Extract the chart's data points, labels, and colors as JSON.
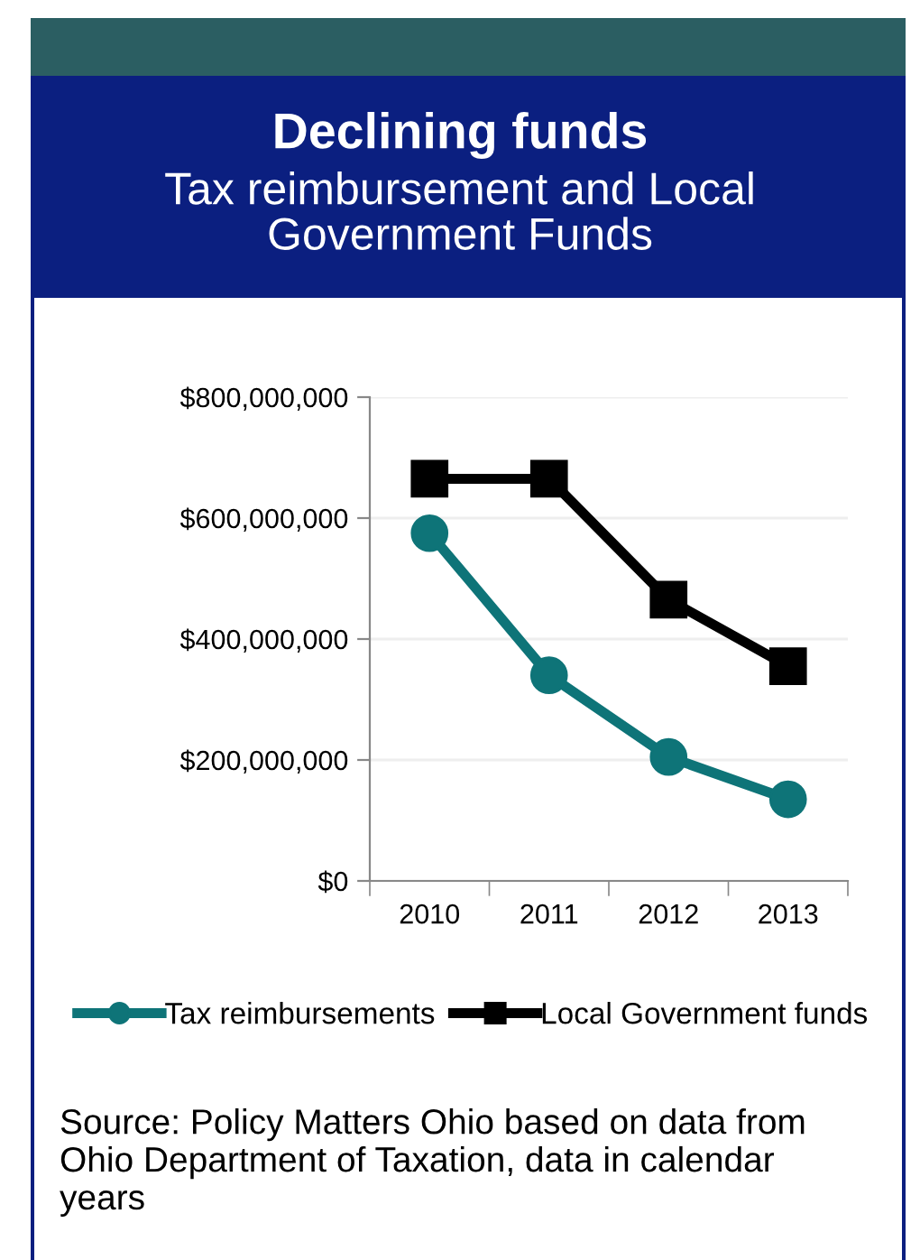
{
  "chart_data": {
    "type": "line",
    "title": "Declining funds",
    "subtitle": "Tax reimbursement and Local Government Funds",
    "categories": [
      "2010",
      "2011",
      "2012",
      "2013"
    ],
    "series": [
      {
        "name": "Tax reimbursements",
        "color": "#0e7478",
        "values": [
          575000000,
          340000000,
          205000000,
          135000000
        ],
        "marker": "circle"
      },
      {
        "name": "Local Government funds",
        "color": "#000000",
        "values": [
          665000000,
          665000000,
          465000000,
          355000000
        ],
        "marker": "square"
      }
    ],
    "ylim": [
      0,
      800000000
    ],
    "yticks": [
      {
        "value": 0,
        "label": "$0"
      },
      {
        "value": 200000000,
        "label": "$200,000,000"
      },
      {
        "value": 400000000,
        "label": "$400,000,000"
      },
      {
        "value": 600000000,
        "label": "$600,000,000"
      },
      {
        "value": 800000000,
        "label": "$800,000,000"
      }
    ],
    "grid": "y",
    "legend": "bottom",
    "line_style": "solid",
    "annotations": [
      "Source: Policy Matters Ohio based on data from Ohio Department of Taxation, data in calendar years"
    ]
  }
}
